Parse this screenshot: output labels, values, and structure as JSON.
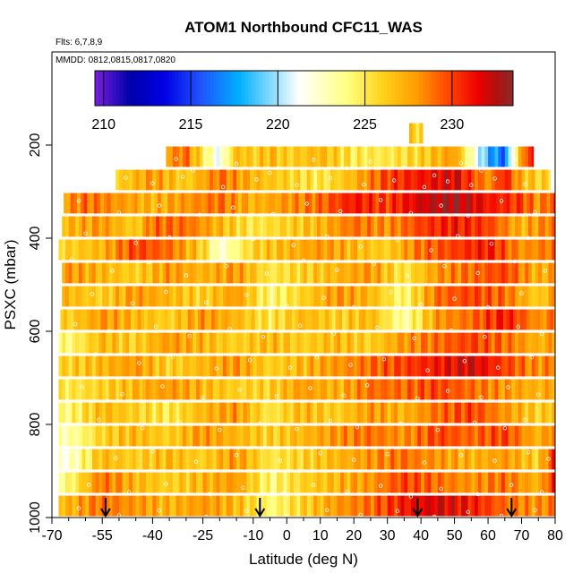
{
  "chart_data": {
    "type": "heatmap",
    "title": "ATOM1 Northbound CFC11_WAS",
    "flights_label": "Flts: 6,7,8,9",
    "dates_label": "MMDD: 0812,0815,0817,0820",
    "xlabel": "Latitude (deg N)",
    "ylabel": "PSXC (mbar)",
    "xlim": [
      -70,
      80
    ],
    "ylim": [
      1000,
      0
    ],
    "x_ticks": [
      -70,
      -55,
      -40,
      -25,
      -10,
      0,
      10,
      20,
      30,
      40,
      50,
      60,
      70,
      80
    ],
    "x_minor_ticks": [
      -65,
      -60,
      -50,
      -45,
      -35,
      -30,
      -20,
      -15,
      -5,
      5,
      15,
      25,
      35,
      45,
      55,
      65,
      75
    ],
    "y_ticks": [
      200,
      400,
      600,
      800,
      1000
    ],
    "colorbar": {
      "min": 209.5,
      "max": 233.5,
      "ticks": [
        210,
        215,
        220,
        225,
        230
      ],
      "colors": [
        "#7a1fe0",
        "#0000aa",
        "#0000e6",
        "#2050ff",
        "#00b0ff",
        "#ffffff",
        "#ffff80",
        "#ffd21a",
        "#ff9a00",
        "#ff4500",
        "#ee0000",
        "#b01010",
        "#8b2c2c"
      ],
      "stops": [
        209.5,
        211.5,
        213.5,
        215.5,
        217.8,
        221.2,
        224.0,
        226.0,
        228.0,
        229.8,
        231.5,
        232.6,
        233.5
      ]
    },
    "flight_path_markers_lat": [
      -54,
      -8,
      39,
      67
    ],
    "rows": [
      {
        "p": 175,
        "lat": [
          37.5,
          40.0
        ],
        "v": [
          226,
          226
        ]
      },
      {
        "p": 225,
        "lat": [
          -35,
          -30,
          -20,
          -15,
          -10,
          -5,
          0,
          10,
          20,
          30,
          40,
          50,
          60,
          65,
          70,
          73
        ],
        "v": [
          228,
          229,
          221,
          227,
          226,
          227,
          226,
          227,
          225,
          225,
          226,
          228,
          218,
          216,
          228,
          231
        ]
      },
      {
        "p": 275,
        "lat": [
          -50,
          -40,
          -30,
          -20,
          -10,
          0,
          10,
          20,
          30,
          40,
          50,
          60,
          65,
          70,
          75
        ],
        "v": [
          226,
          228,
          226,
          229,
          227,
          226,
          225,
          227,
          230,
          231,
          232,
          228,
          231,
          227,
          226
        ]
      },
      {
        "p": 325,
        "lat": [
          -65,
          -60,
          -50,
          -40,
          -30,
          -20,
          -10,
          0,
          10,
          20,
          30,
          40,
          50,
          60,
          70,
          75,
          80
        ],
        "v": [
          228,
          229,
          228,
          227,
          228,
          229,
          227,
          228,
          229,
          231,
          230,
          232,
          233,
          231,
          230,
          228,
          230
        ]
      },
      {
        "p": 375,
        "lat": [
          -65,
          -55,
          -45,
          -40,
          -30,
          -20,
          -10,
          0,
          10,
          20,
          30,
          40,
          50,
          60,
          70,
          80
        ],
        "v": [
          227,
          228,
          226,
          229,
          229,
          227,
          225,
          226,
          227,
          229,
          228,
          230,
          231,
          230,
          227,
          229
        ]
      },
      {
        "p": 425,
        "lat": [
          -65,
          -55,
          -45,
          -35,
          -25,
          -20,
          -10,
          0,
          10,
          20,
          30,
          40,
          50,
          60,
          70,
          80
        ],
        "v": [
          226,
          227,
          230,
          229,
          226,
          222,
          226,
          227,
          228,
          227,
          226,
          229,
          230,
          231,
          228,
          229
        ]
      },
      {
        "p": 475,
        "lat": [
          -65,
          -55,
          -45,
          -35,
          -25,
          -15,
          -5,
          5,
          15,
          25,
          35,
          45,
          55,
          65,
          75,
          80
        ],
        "v": [
          228,
          227,
          226,
          228,
          227,
          228,
          225,
          226,
          227,
          228,
          225,
          228,
          229,
          230,
          227,
          228
        ]
      },
      {
        "p": 525,
        "lat": [
          -65,
          -55,
          -45,
          -35,
          -25,
          -15,
          -5,
          5,
          15,
          25,
          35,
          45,
          55,
          65,
          75,
          80
        ],
        "v": [
          227,
          226,
          228,
          227,
          226,
          228,
          224,
          226,
          228,
          227,
          224,
          229,
          230,
          229,
          226,
          228
        ]
      },
      {
        "p": 575,
        "lat": [
          -65,
          -55,
          -45,
          -35,
          -25,
          -15,
          -5,
          5,
          15,
          25,
          35,
          45,
          55,
          65,
          75,
          80
        ],
        "v": [
          226,
          228,
          227,
          226,
          228,
          227,
          225,
          227,
          226,
          227,
          223,
          228,
          229,
          231,
          228,
          229
        ]
      },
      {
        "p": 625,
        "lat": [
          -65,
          -55,
          -45,
          -35,
          -25,
          -15,
          -5,
          5,
          15,
          25,
          35,
          45,
          55,
          65,
          75,
          80
        ],
        "v": [
          224,
          227,
          226,
          228,
          227,
          226,
          227,
          226,
          227,
          226,
          228,
          229,
          230,
          229,
          227,
          228
        ]
      },
      {
        "p": 675,
        "lat": [
          -65,
          -55,
          -45,
          -35,
          -25,
          -15,
          -5,
          5,
          15,
          25,
          35,
          45,
          55,
          65,
          75,
          80
        ],
        "v": [
          226,
          227,
          228,
          226,
          227,
          228,
          226,
          227,
          228,
          229,
          230,
          231,
          232,
          230,
          228,
          229
        ]
      },
      {
        "p": 725,
        "lat": [
          -65,
          -55,
          -45,
          -35,
          -25,
          -15,
          -5,
          5,
          15,
          25,
          35,
          45,
          55,
          65,
          75,
          80
        ],
        "v": [
          225,
          226,
          227,
          228,
          227,
          226,
          226,
          228,
          227,
          229,
          229,
          230,
          229,
          228,
          227,
          228
        ]
      },
      {
        "p": 775,
        "lat": [
          -65,
          -55,
          -45,
          -35,
          -25,
          -15,
          -5,
          5,
          15,
          25,
          35,
          45,
          55,
          65,
          75,
          80
        ],
        "v": [
          224,
          227,
          226,
          225,
          227,
          228,
          225,
          227,
          226,
          228,
          227,
          229,
          230,
          228,
          226,
          227
        ]
      },
      {
        "p": 825,
        "lat": [
          -65,
          -55,
          -45,
          -35,
          -25,
          -15,
          -5,
          5,
          15,
          25,
          35,
          45,
          55,
          65,
          75,
          80
        ],
        "v": [
          223,
          226,
          227,
          226,
          228,
          227,
          226,
          227,
          228,
          229,
          228,
          230,
          229,
          230,
          227,
          229
        ]
      },
      {
        "p": 875,
        "lat": [
          -65,
          -55,
          -45,
          -35,
          -25,
          -15,
          -5,
          5,
          15,
          25,
          35,
          45,
          55,
          65,
          75,
          80
        ],
        "v": [
          222,
          227,
          226,
          227,
          226,
          228,
          225,
          226,
          227,
          228,
          229,
          228,
          227,
          228,
          226,
          231
        ]
      },
      {
        "p": 925,
        "lat": [
          -65,
          -55,
          -45,
          -35,
          -25,
          -15,
          -5,
          5,
          15,
          25,
          35,
          45,
          55,
          65,
          75,
          80
        ],
        "v": [
          224,
          229,
          227,
          226,
          227,
          228,
          224,
          226,
          227,
          228,
          230,
          229,
          228,
          229,
          227,
          231
        ]
      },
      {
        "p": 975,
        "lat": [
          -65,
          -55,
          -45,
          -35,
          -25,
          -15,
          -5,
          5,
          15,
          25,
          35,
          45,
          55,
          65,
          75,
          80
        ],
        "v": [
          227,
          229,
          228,
          227,
          228,
          227,
          224,
          226,
          228,
          229,
          231,
          232,
          231,
          229,
          228,
          229
        ]
      }
    ],
    "row_extents": [
      {
        "p": 175,
        "lat_min": 36.5,
        "lat_max": 40.5
      },
      {
        "p": 225,
        "lat_min": -36,
        "lat_max": 73.5
      },
      {
        "p": 275,
        "lat_min": -51,
        "lat_max": 78.5
      },
      {
        "p": 325,
        "lat_min": -66.5,
        "lat_max": 80
      },
      {
        "p": 375,
        "lat_min": -67,
        "lat_max": 80
      },
      {
        "p": 425,
        "lat_min": -68,
        "lat_max": 80
      },
      {
        "p": 475,
        "lat_min": -67,
        "lat_max": 80
      },
      {
        "p": 525,
        "lat_min": -67,
        "lat_max": 80
      },
      {
        "p": 575,
        "lat_min": -67.5,
        "lat_max": 80
      },
      {
        "p": 625,
        "lat_min": -68,
        "lat_max": 80
      },
      {
        "p": 675,
        "lat_min": -68,
        "lat_max": 80
      },
      {
        "p": 725,
        "lat_min": -68,
        "lat_max": 80
      },
      {
        "p": 775,
        "lat_min": -68,
        "lat_max": 80
      },
      {
        "p": 825,
        "lat_min": -68,
        "lat_max": 80
      },
      {
        "p": 875,
        "lat_min": -68,
        "lat_max": 80
      },
      {
        "p": 925,
        "lat_min": -68,
        "lat_max": 80
      },
      {
        "p": 975,
        "lat_min": -68,
        "lat_max": 80
      }
    ],
    "sample_points": [
      [
        -33,
        230
      ],
      [
        -28,
        255
      ],
      [
        -22,
        228
      ],
      [
        -15,
        240
      ],
      [
        -5,
        260
      ],
      [
        8,
        232
      ],
      [
        18,
        250
      ],
      [
        25,
        236
      ],
      [
        35,
        248
      ],
      [
        44,
        265
      ],
      [
        52,
        238
      ],
      [
        58,
        255
      ],
      [
        68,
        232
      ],
      [
        -48,
        270
      ],
      [
        -40,
        282
      ],
      [
        -31,
        268
      ],
      [
        -19,
        290
      ],
      [
        -9,
        274
      ],
      [
        3,
        286
      ],
      [
        13,
        271
      ],
      [
        23,
        285
      ],
      [
        32,
        276
      ],
      [
        41,
        290
      ],
      [
        48,
        278
      ],
      [
        55,
        286
      ],
      [
        62,
        272
      ],
      [
        71,
        284
      ],
      [
        -62,
        320
      ],
      [
        -50,
        345
      ],
      [
        -38,
        330
      ],
      [
        -26,
        350
      ],
      [
        -16,
        334
      ],
      [
        -4,
        348
      ],
      [
        6,
        326
      ],
      [
        16,
        342
      ],
      [
        28,
        318
      ],
      [
        37,
        346
      ],
      [
        46,
        330
      ],
      [
        54,
        352
      ],
      [
        64,
        320
      ],
      [
        74,
        344
      ],
      [
        -60,
        390
      ],
      [
        -45,
        410
      ],
      [
        -35,
        398
      ],
      [
        -20,
        420
      ],
      [
        -10,
        402
      ],
      [
        2,
        415
      ],
      [
        12,
        396
      ],
      [
        22,
        418
      ],
      [
        33,
        404
      ],
      [
        43,
        426
      ],
      [
        51,
        395
      ],
      [
        61,
        412
      ],
      [
        72,
        400
      ],
      [
        -64,
        445
      ],
      [
        -52,
        470
      ],
      [
        -41,
        452
      ],
      [
        -30,
        480
      ],
      [
        -18,
        460
      ],
      [
        -6,
        476
      ],
      [
        5,
        448
      ],
      [
        15,
        468
      ],
      [
        26,
        455
      ],
      [
        36,
        482
      ],
      [
        47,
        460
      ],
      [
        57,
        475
      ],
      [
        68,
        450
      ],
      [
        77,
        470
      ],
      [
        -58,
        520
      ],
      [
        -46,
        540
      ],
      [
        -36,
        515
      ],
      [
        -24,
        538
      ],
      [
        -12,
        522
      ],
      [
        0,
        545
      ],
      [
        11,
        528
      ],
      [
        20,
        548
      ],
      [
        31,
        516
      ],
      [
        40,
        542
      ],
      [
        50,
        530
      ],
      [
        60,
        548
      ],
      [
        70,
        518
      ],
      [
        -63,
        585
      ],
      [
        -53,
        600
      ],
      [
        -39,
        590
      ],
      [
        -29,
        610
      ],
      [
        -17,
        595
      ],
      [
        -7,
        612
      ],
      [
        4,
        588
      ],
      [
        14,
        605
      ],
      [
        27,
        592
      ],
      [
        38,
        615
      ],
      [
        49,
        598
      ],
      [
        59,
        612
      ],
      [
        69,
        590
      ],
      [
        76,
        606
      ],
      [
        -57,
        650
      ],
      [
        -44,
        668
      ],
      [
        -34,
        655
      ],
      [
        -21,
        680
      ],
      [
        -11,
        662
      ],
      [
        1,
        678
      ],
      [
        9,
        656
      ],
      [
        19,
        672
      ],
      [
        29,
        660
      ],
      [
        42,
        684
      ],
      [
        53,
        664
      ],
      [
        63,
        678
      ],
      [
        73,
        656
      ],
      [
        -61,
        720
      ],
      [
        -49,
        735
      ],
      [
        -37,
        718
      ],
      [
        -25,
        742
      ],
      [
        -14,
        726
      ],
      [
        -3,
        740
      ],
      [
        7,
        722
      ],
      [
        17,
        738
      ],
      [
        24,
        716
      ],
      [
        39,
        744
      ],
      [
        48,
        728
      ],
      [
        58,
        742
      ],
      [
        66,
        720
      ],
      [
        75,
        736
      ],
      [
        -56,
        790
      ],
      [
        -43,
        808
      ],
      [
        -32,
        795
      ],
      [
        -20,
        812
      ],
      [
        -8,
        798
      ],
      [
        3,
        810
      ],
      [
        13,
        792
      ],
      [
        21,
        806
      ],
      [
        34,
        798
      ],
      [
        45,
        812
      ],
      [
        56,
        796
      ],
      [
        65,
        808
      ],
      [
        71,
        790
      ],
      [
        -65,
        860
      ],
      [
        -51,
        872
      ],
      [
        -40,
        858
      ],
      [
        -27,
        880
      ],
      [
        -15,
        866
      ],
      [
        -2,
        878
      ],
      [
        10,
        862
      ],
      [
        20,
        876
      ],
      [
        30,
        864
      ],
      [
        41,
        882
      ],
      [
        52,
        866
      ],
      [
        62,
        878
      ],
      [
        72,
        860
      ],
      [
        78,
        874
      ],
      [
        -59,
        930
      ],
      [
        -47,
        945
      ],
      [
        -36,
        928
      ],
      [
        -23,
        950
      ],
      [
        -13,
        936
      ],
      [
        -1,
        948
      ],
      [
        8,
        930
      ],
      [
        18,
        944
      ],
      [
        28,
        932
      ],
      [
        37,
        955
      ],
      [
        46,
        938
      ],
      [
        57,
        950
      ],
      [
        67,
        930
      ],
      [
        76,
        945
      ],
      [
        -62,
        980
      ],
      [
        -50,
        995
      ],
      [
        -38,
        985
      ],
      [
        -24,
        998
      ],
      [
        -12,
        986
      ],
      [
        0,
        996
      ],
      [
        12,
        984
      ],
      [
        22,
        994
      ],
      [
        33,
        986
      ],
      [
        44,
        998
      ],
      [
        54,
        988
      ],
      [
        64,
        996
      ],
      [
        74,
        984
      ]
    ]
  }
}
